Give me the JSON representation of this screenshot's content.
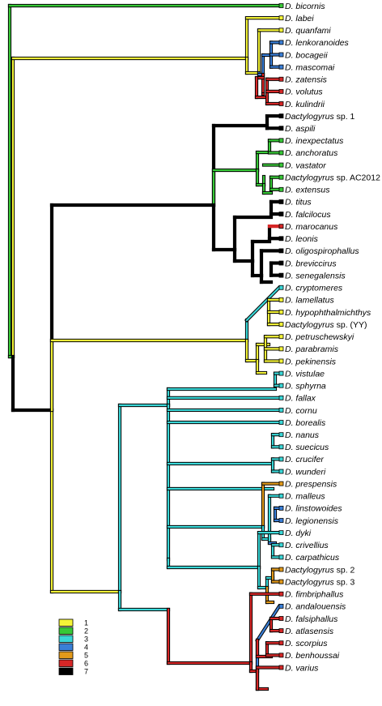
{
  "colors": {
    "1": "#f4f438",
    "2": "#37c837",
    "3": "#3ad7d7",
    "4": "#3a7fd7",
    "5": "#e39a1a",
    "6": "#d62727",
    "7": "#000000"
  },
  "legend": [
    {
      "label": "1",
      "color_key": "1"
    },
    {
      "label": "2",
      "color_key": "2"
    },
    {
      "label": "3",
      "color_key": "3"
    },
    {
      "label": "4",
      "color_key": "4"
    },
    {
      "label": "5",
      "color_key": "5"
    },
    {
      "label": "6",
      "color_key": "6"
    },
    {
      "label": "7",
      "color_key": "7"
    }
  ],
  "taxa": [
    {
      "prefix": "D.",
      "name": "bicornis",
      "state": "2"
    },
    {
      "prefix": "D.",
      "name": "labei",
      "state": "1"
    },
    {
      "prefix": "D.",
      "name": "quanfami",
      "state": "1"
    },
    {
      "prefix": "D.",
      "name": "lenkoranoides",
      "state": "4"
    },
    {
      "prefix": "D.",
      "name": "bocageii",
      "state": "4"
    },
    {
      "prefix": "D.",
      "name": "mascomai",
      "state": "4"
    },
    {
      "prefix": "D.",
      "name": "zatensis",
      "state": "6"
    },
    {
      "prefix": "D.",
      "name": "volutus",
      "state": "6"
    },
    {
      "prefix": "D.",
      "name": "kulindrii",
      "state": "6"
    },
    {
      "prefix": "",
      "name": "Dactylogyrus",
      "suffix": " sp. 1",
      "state": "7"
    },
    {
      "prefix": "D.",
      "name": "aspili",
      "state": "7"
    },
    {
      "prefix": "D.",
      "name": "inexpectatus",
      "state": "2"
    },
    {
      "prefix": "D.",
      "name": "anchoratus",
      "state": "2"
    },
    {
      "prefix": "D.",
      "name": "vastator",
      "state": "2"
    },
    {
      "prefix": "",
      "name": "Dactylogyrus",
      "suffix": " sp. AC2012",
      "state": "2"
    },
    {
      "prefix": "D.",
      "name": "extensus",
      "state": "2"
    },
    {
      "prefix": "D.",
      "name": "titus",
      "state": "7"
    },
    {
      "prefix": "D.",
      "name": "falcilocus",
      "state": "7"
    },
    {
      "prefix": "D.",
      "name": "marocanus",
      "state": "6"
    },
    {
      "prefix": "D.",
      "name": "leonis",
      "state": "7"
    },
    {
      "prefix": "D.",
      "name": "oligospirophallus",
      "state": "7"
    },
    {
      "prefix": "D.",
      "name": "breviccirus",
      "state": "7"
    },
    {
      "prefix": "D.",
      "name": "senegalensis",
      "state": "7"
    },
    {
      "prefix": "D.",
      "name": "cryptomeres",
      "state": "3"
    },
    {
      "prefix": "D.",
      "name": "lamellatus",
      "state": "1"
    },
    {
      "prefix": "D.",
      "name": "hypophthalmichthys",
      "state": "1"
    },
    {
      "prefix": "",
      "name": "Dactylogyrus",
      "suffix": " sp. (YY)",
      "state": "1"
    },
    {
      "prefix": "D.",
      "name": "petruschewskyi",
      "state": "1"
    },
    {
      "prefix": "D.",
      "name": "parabramis",
      "state": "1"
    },
    {
      "prefix": "D.",
      "name": "pekinensis",
      "state": "1"
    },
    {
      "prefix": "D.",
      "name": "vistulae",
      "state": "3"
    },
    {
      "prefix": "D.",
      "name": "sphyrna",
      "state": "3"
    },
    {
      "prefix": "D.",
      "name": "fallax",
      "state": "3"
    },
    {
      "prefix": "D.",
      "name": "cornu",
      "state": "3"
    },
    {
      "prefix": "D.",
      "name": "borealis",
      "state": "3"
    },
    {
      "prefix": "D.",
      "name": "nanus",
      "state": "3"
    },
    {
      "prefix": "D.",
      "name": "suecicus",
      "state": "3"
    },
    {
      "prefix": "D.",
      "name": "crucifer",
      "state": "3"
    },
    {
      "prefix": "D.",
      "name": "wunderi",
      "state": "3"
    },
    {
      "prefix": "D.",
      "name": "prespensis",
      "state": "5"
    },
    {
      "prefix": "D.",
      "name": "malleus",
      "state": "3"
    },
    {
      "prefix": "D.",
      "name": "linstowoides",
      "state": "4"
    },
    {
      "prefix": "D.",
      "name": "legionensis",
      "state": "4"
    },
    {
      "prefix": "D.",
      "name": "dyki",
      "state": "3"
    },
    {
      "prefix": "D.",
      "name": "crivellius",
      "state": "3"
    },
    {
      "prefix": "D.",
      "name": "carpathicus",
      "state": "3"
    },
    {
      "prefix": "",
      "name": "Dactylogyrus",
      "suffix": " sp. 2",
      "state": "5"
    },
    {
      "prefix": "",
      "name": "Dactylogyrus",
      "suffix": " sp. 3",
      "state": "5"
    },
    {
      "prefix": "D.",
      "name": "fimbriphallus",
      "state": "6"
    },
    {
      "prefix": "D.",
      "name": "andalouensis",
      "state": "4"
    },
    {
      "prefix": "D.",
      "name": "falsiphallus",
      "state": "6"
    },
    {
      "prefix": "D.",
      "name": "atlasensis",
      "state": "6"
    },
    {
      "prefix": "D.",
      "name": "scorpius",
      "state": "6"
    },
    {
      "prefix": "D.",
      "name": "benhoussai",
      "state": "6"
    },
    {
      "prefix": "D.",
      "name": "varius",
      "state": "6"
    }
  ]
}
